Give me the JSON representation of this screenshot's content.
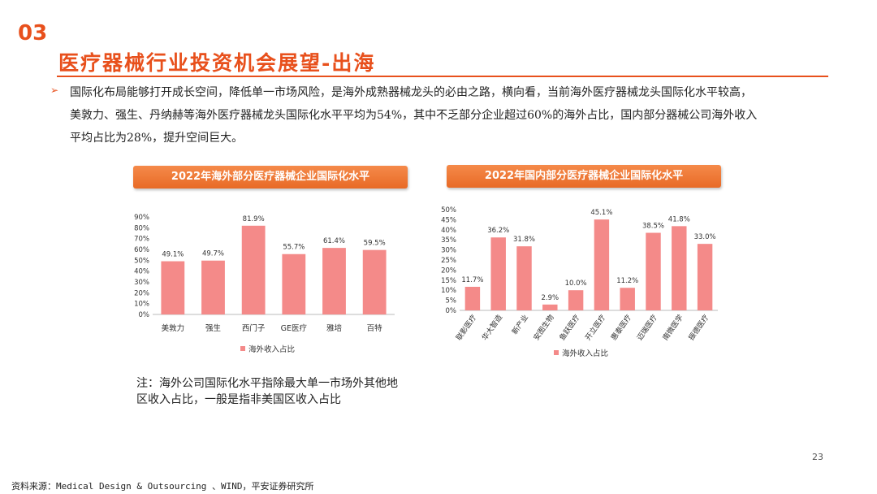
{
  "header": {
    "section_number": "03",
    "title": "医疗器械行业投资机会展望-出海"
  },
  "bullet": {
    "arrow": "➢",
    "lines": [
      "国际化布局能够打开成长空间，降低单一市场风险，是海外成熟器械龙头的必由之路，横向看，当前海外医疗器械龙头国际化水平较高，",
      "美敦力、强生、丹纳赫等海外医疗器械龙头国际化水平平均为54%，其中不乏部分企业超过60%的海外占比，国内部分器械公司海外收入",
      "平均占比为28%，提升空间巨大。"
    ]
  },
  "colors": {
    "accent": "#e8501c",
    "bar": "#f48a89"
  },
  "charts": {
    "left_title": "2022年海外部分医疗器械企业国际化水平",
    "right_title": "2022年国内部分医疗器械企业国际化水平"
  },
  "chart_data": [
    {
      "type": "bar",
      "title": "2022年海外部分医疗器械企业国际化水平",
      "categories": [
        "美敦力",
        "强生",
        "西门子",
        "GE医疗",
        "雅培",
        "百特"
      ],
      "series": [
        {
          "name": "海外收入占比",
          "values": [
            49.1,
            49.7,
            81.9,
            55.7,
            61.4,
            59.5
          ]
        }
      ],
      "value_labels": [
        "49.1%",
        "49.7%",
        "81.9%",
        "55.7%",
        "61.4%",
        "59.5%"
      ],
      "yticks": [
        "0%",
        "10%",
        "20%",
        "30%",
        "40%",
        "50%",
        "60%",
        "70%",
        "80%",
        "90%"
      ],
      "ylim": [
        0,
        90
      ],
      "legend": "bottom",
      "xlabel": "",
      "ylabel": ""
    },
    {
      "type": "bar",
      "title": "2022年国内部分医疗器械企业国际化水平",
      "categories": [
        "联影医疗",
        "华大智造",
        "新产业",
        "安图生物",
        "鱼跃医疗",
        "开立医疗",
        "惠泰医疗",
        "迈瑞医疗",
        "南微医学",
        "振德医疗"
      ],
      "series": [
        {
          "name": "海外收入占比",
          "values": [
            11.7,
            36.2,
            31.8,
            2.9,
            10.0,
            45.1,
            11.2,
            38.5,
            41.8,
            33.0
          ]
        }
      ],
      "value_labels": [
        "11.7%",
        "36.2%",
        "31.8%",
        "2.9%",
        "10.0%",
        "45.1%",
        "11.2%",
        "38.5%",
        "41.8%",
        "33.0%"
      ],
      "yticks": [
        "0%",
        "5%",
        "10%",
        "15%",
        "20%",
        "25%",
        "30%",
        "35%",
        "40%",
        "45%",
        "50%"
      ],
      "ylim": [
        0,
        50
      ],
      "legend": "bottom",
      "xlabel": "",
      "ylabel": ""
    }
  ],
  "note": {
    "line1": "注：海外公司国际化水平指除最大单一市场外其他地",
    "line2": "区收入占比，一般是指非美国区收入占比"
  },
  "page_number": "23",
  "source": "资料来源：Medical Design & Outsourcing 、WIND，平安证券研究所"
}
